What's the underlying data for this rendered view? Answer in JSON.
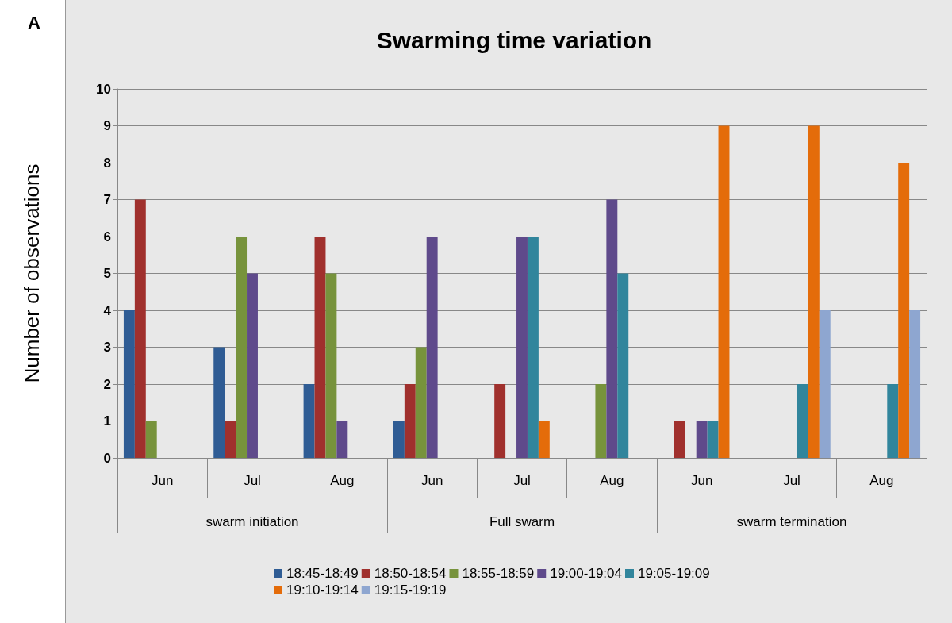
{
  "chart_data": {
    "type": "bar",
    "title": "Swarming time variation",
    "ylabel": "Number of observations",
    "annotations": [
      "A",
      "swarm initiation",
      "Full swarm",
      "swarm termination"
    ],
    "categories": [
      "Jun",
      "Jul",
      "Aug",
      "Jun",
      "Jul",
      "Aug",
      "Jun",
      "Jul",
      "Aug"
    ],
    "series": [
      {
        "name": "18:45-18:49",
        "color": "#2f5c94",
        "values": [
          4,
          3,
          2,
          1,
          0,
          0,
          0,
          0,
          0
        ]
      },
      {
        "name": "18:50-18:54",
        "color": "#a0302d",
        "values": [
          7,
          1,
          6,
          2,
          2,
          0,
          1,
          0,
          0
        ]
      },
      {
        "name": "18:55-18:59",
        "color": "#77933c",
        "values": [
          1,
          6,
          5,
          3,
          0,
          2,
          0,
          0,
          0
        ]
      },
      {
        "name": "19:00-19:04",
        "color": "#5f4a8b",
        "values": [
          0,
          5,
          1,
          6,
          6,
          7,
          1,
          0,
          0
        ]
      },
      {
        "name": "19:05-19:09",
        "color": "#31859c",
        "values": [
          0,
          0,
          0,
          0,
          6,
          5,
          1,
          2,
          2
        ]
      },
      {
        "name": "19:10-19:14",
        "color": "#e46c0a",
        "values": [
          0,
          0,
          0,
          0,
          1,
          0,
          9,
          9,
          8
        ]
      },
      {
        "name": "19:15-19:19",
        "color": "#8ea6d0",
        "values": [
          0,
          0,
          0,
          0,
          0,
          0,
          0,
          4,
          4
        ]
      }
    ],
    "ylim": [
      0,
      10
    ],
    "yticks": [
      0,
      1,
      2,
      3,
      4,
      5,
      6,
      7,
      8,
      9,
      10
    ],
    "grid": "y",
    "legend": "bottom"
  }
}
